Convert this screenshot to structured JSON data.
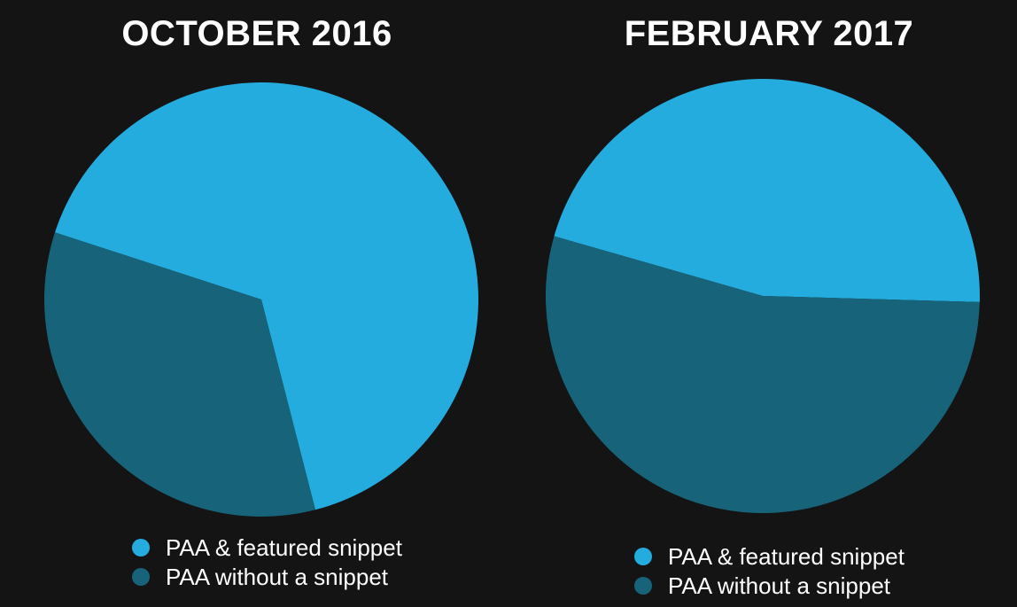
{
  "background_color": "#141415",
  "text_color": "#ffffff",
  "chart_data": [
    {
      "type": "pie",
      "title": "OCTOBER 2016",
      "labels": [
        "PAA & featured snippet",
        "PAA without a snippet"
      ],
      "values": [
        66,
        34
      ],
      "values_unit": "percent (estimated from slice angles)",
      "colors": [
        "#24acde",
        "#17647a"
      ],
      "start_angle_deg": 288,
      "legend_position": "bottom-left",
      "data_labels_shown": false
    },
    {
      "type": "pie",
      "title": "FEBRUARY 2017",
      "labels": [
        "PAA & featured snippet",
        "PAA without a snippet"
      ],
      "values": [
        46,
        54
      ],
      "values_unit": "percent (estimated from slice angles)",
      "colors": [
        "#24acde",
        "#17647a"
      ],
      "start_angle_deg": 286,
      "legend_position": "bottom",
      "data_labels_shown": false
    }
  ]
}
